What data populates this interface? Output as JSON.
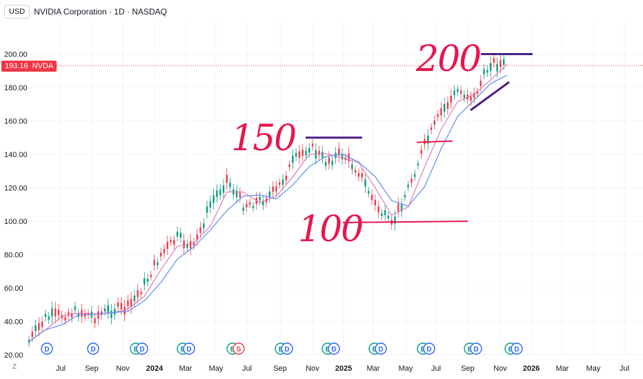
{
  "header": {
    "currency": "USD",
    "title": "NVIDIA Corporation · 1D · NASDAQ"
  },
  "price_tag": {
    "value": "193.16",
    "ticker": "NVDA"
  },
  "bottom_left_label": "Z",
  "handwritten": {
    "a": "150",
    "b": "100",
    "c": "200"
  },
  "colors": {
    "up": "#089981",
    "down": "#f23645",
    "ma_fast": "#e07ab5",
    "ma_slow": "#5b8def",
    "ink_red": "#e8164d",
    "ink_purple": "#4b1e86",
    "price_line": "#f23645"
  },
  "chart_data": {
    "type": "line",
    "title": "NVIDIA Corporation · 1D · NASDAQ",
    "y_ticks": [
      "20.00",
      "40.00",
      "60.00",
      "80.00",
      "100.00",
      "120.00",
      "140.00",
      "160.00",
      "180.00",
      "200.00"
    ],
    "ylim": [
      20,
      220
    ],
    "x_ticks": [
      "Jul",
      "Sep",
      "Nov",
      "2024",
      "Mar",
      "May",
      "Jul",
      "Sep",
      "Nov",
      "2025",
      "Mar",
      "May",
      "Jul",
      "Sep",
      "Nov",
      "2026",
      "Mar",
      "May",
      "Jul"
    ],
    "series": [
      {
        "x": [
          "2023-06",
          "2023-07",
          "2023-08",
          "2023-09",
          "2023-10",
          "2023-11",
          "2023-12",
          "2024-01",
          "2024-02",
          "2024-03",
          "2024-04",
          "2024-05",
          "2024-06",
          "2024-07",
          "2024-08",
          "2024-09",
          "2024-10",
          "2024-11",
          "2024-12",
          "2025-01",
          "2025-02",
          "2025-03",
          "2025-04",
          "2025-05",
          "2025-06",
          "2025-07",
          "2025-08",
          "2025-09",
          "2025-10",
          "2025-11"
        ],
        "values": [
          28,
          42,
          44,
          46,
          43,
          47,
          48,
          62,
          80,
          90,
          84,
          110,
          125,
          110,
          112,
          118,
          135,
          145,
          136,
          140,
          130,
          110,
          97,
          120,
          145,
          165,
          178,
          174,
          195,
          193
        ]
      }
    ],
    "price_line": 193.16,
    "drawn_levels": [
      150,
      100,
      148,
      200
    ],
    "events": [
      {
        "x": "Jul",
        "label": "D"
      },
      {
        "x": "Sep",
        "label": "D"
      },
      {
        "x": "Nov",
        "label": "E D"
      },
      {
        "x": "2024",
        "label": "E D"
      },
      {
        "x": "Mar",
        "label": "E S"
      },
      {
        "x": "May",
        "label": "E D"
      },
      {
        "x": "Jul",
        "label": "E D"
      },
      {
        "x": "Nov",
        "label": "E D"
      },
      {
        "x": "Mar",
        "label": "E D"
      },
      {
        "x": "Jul",
        "label": "E D"
      },
      {
        "x": "Sep",
        "label": "E D"
      },
      {
        "x": "Nov",
        "label": "E"
      }
    ]
  }
}
